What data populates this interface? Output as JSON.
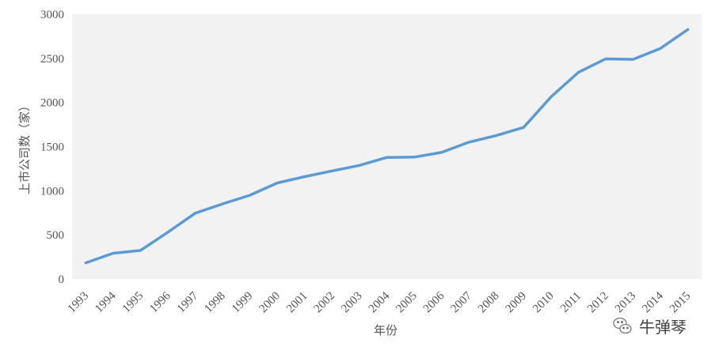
{
  "chart_data": {
    "type": "line",
    "title": "",
    "xlabel": "年份",
    "ylabel": "上市公司数（家）",
    "ylim": [
      0,
      3000
    ],
    "yticks": [
      0,
      500,
      1000,
      1500,
      2000,
      2500,
      3000
    ],
    "grid": false,
    "x": [
      "1993",
      "1994",
      "1995",
      "1996",
      "1997",
      "1998",
      "1999",
      "2000",
      "2001",
      "2002",
      "2003",
      "2004",
      "2005",
      "2006",
      "2007",
      "2008",
      "2009",
      "2010",
      "2011",
      "2012",
      "2013",
      "2014",
      "2015"
    ],
    "series": [
      {
        "color": "#5b9bd5",
        "values": [
          183,
          291,
          323,
          530,
          745,
          851,
          949,
          1088,
          1160,
          1224,
          1287,
          1377,
          1381,
          1434,
          1550,
          1625,
          1718,
          2063,
          2342,
          2494,
          2489,
          2613,
          2827
        ]
      }
    ],
    "plot_bg": "#f2f2f2"
  },
  "watermark": {
    "text": "牛弹琴",
    "icon": "wechat-icon"
  }
}
